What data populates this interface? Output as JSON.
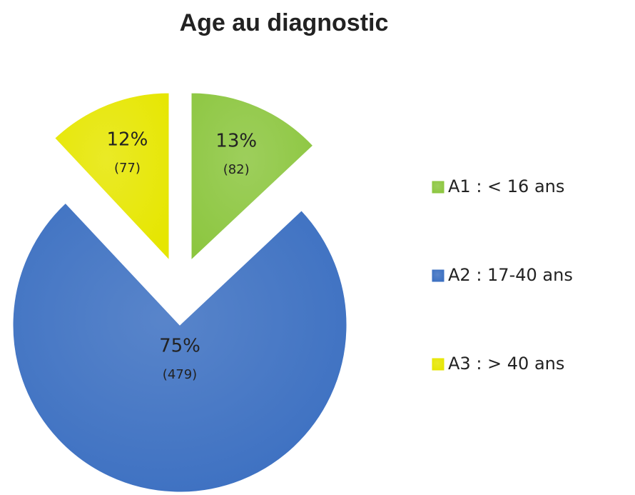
{
  "chart_data": {
    "type": "pie",
    "title": "Age au diagnostic",
    "categories": [
      "A1 : < 16 ans",
      "A2 : 17-40 ans",
      "A3 : > 40 ans"
    ],
    "values": [
      13,
      75,
      12
    ],
    "value_labels": [
      "13%",
      "75%",
      "12%"
    ],
    "counts": [
      82,
      479,
      77
    ],
    "count_labels": [
      "(82)",
      "(479)",
      "(77)"
    ],
    "colors": [
      "#8cc63f",
      "#3b6fc1",
      "#e6e600"
    ],
    "legend": "right"
  }
}
